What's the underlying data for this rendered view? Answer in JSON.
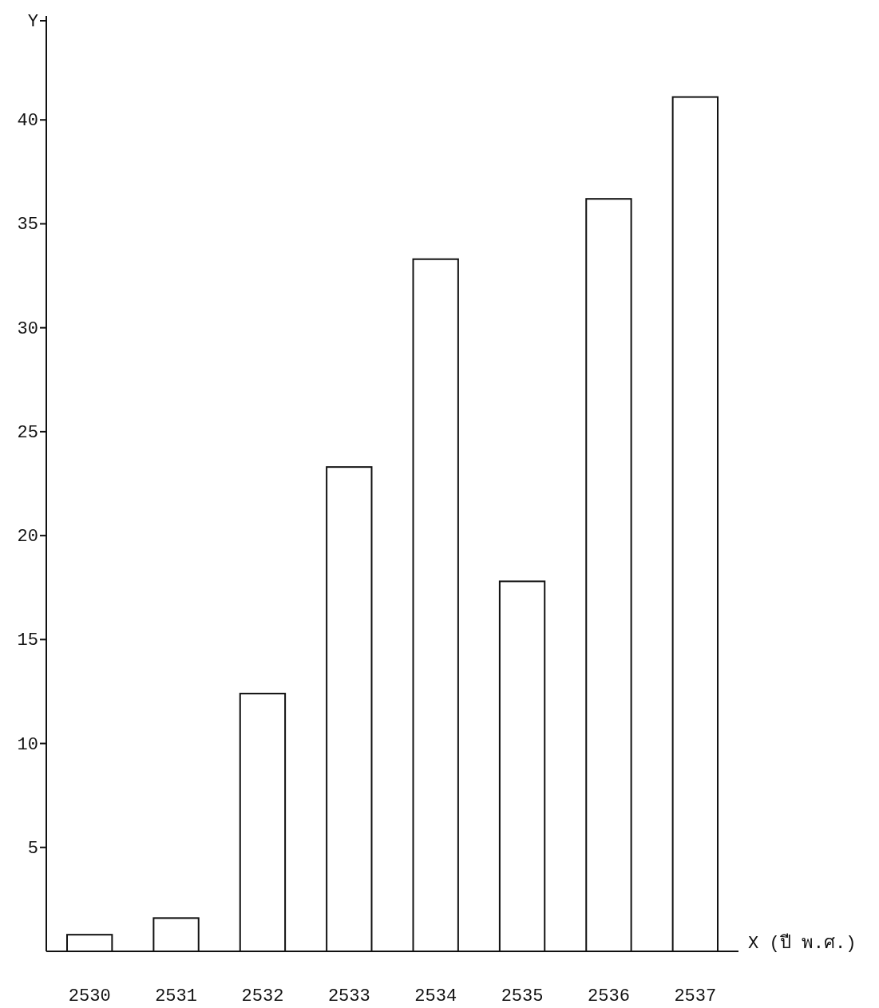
{
  "chart_data": {
    "type": "bar",
    "xlabel": "X (ปี พ.ศ.)",
    "ylabel": "Y",
    "categories": [
      "2530",
      "2531",
      "2532",
      "2533",
      "2534",
      "2535",
      "2536",
      "2537"
    ],
    "values": [
      0.8,
      1.6,
      12.4,
      23.3,
      33.3,
      17.8,
      36.2,
      41.1
    ],
    "ylim": [
      0,
      45
    ],
    "yticks": [
      5,
      10,
      15,
      20,
      25,
      30,
      35,
      40
    ]
  }
}
